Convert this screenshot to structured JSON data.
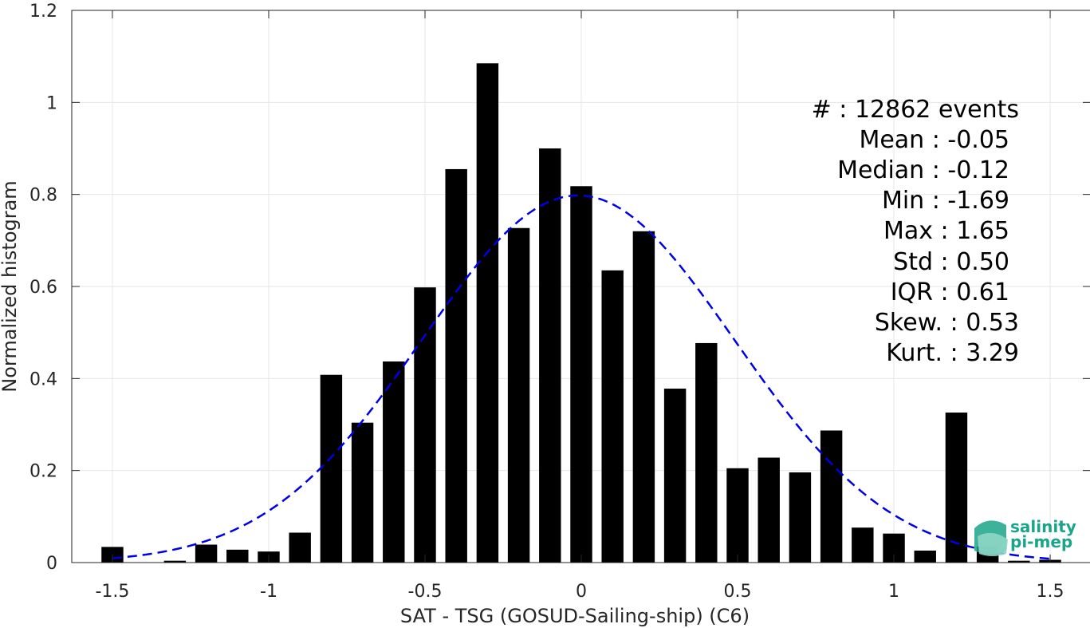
{
  "chart_data": {
    "type": "bar",
    "xlabel": "SAT - TSG (GOSUD-Sailing-ship) (C6)",
    "ylabel": "Normalized histogram",
    "xlim": [
      -1.63,
      1.63
    ],
    "ylim": [
      0,
      1.2
    ],
    "xticks": [
      -1.5,
      -1,
      -0.5,
      0,
      0.5,
      1,
      1.5
    ],
    "xtick_labels": [
      "-1.5",
      "-1",
      "-0.5",
      "0",
      "0.5",
      "1",
      "1.5"
    ],
    "yticks": [
      0,
      0.2,
      0.4,
      0.6,
      0.8,
      1,
      1.2
    ],
    "ytick_labels": [
      "0",
      "0.2",
      "0.4",
      "0.6",
      "0.8",
      "1",
      "1.2"
    ],
    "grid": true,
    "bar_width": 0.07,
    "bins": [
      {
        "x": -1.5,
        "y": 0.034
      },
      {
        "x": -1.3,
        "y": 0.004
      },
      {
        "x": -1.2,
        "y": 0.039
      },
      {
        "x": -1.1,
        "y": 0.028
      },
      {
        "x": -1.0,
        "y": 0.024
      },
      {
        "x": -0.9,
        "y": 0.065
      },
      {
        "x": -0.8,
        "y": 0.408
      },
      {
        "x": -0.7,
        "y": 0.304
      },
      {
        "x": -0.6,
        "y": 0.437
      },
      {
        "x": -0.5,
        "y": 0.598
      },
      {
        "x": -0.4,
        "y": 0.855
      },
      {
        "x": -0.3,
        "y": 1.085
      },
      {
        "x": -0.2,
        "y": 0.727
      },
      {
        "x": -0.1,
        "y": 0.9
      },
      {
        "x": 0.0,
        "y": 0.818
      },
      {
        "x": 0.1,
        "y": 0.635
      },
      {
        "x": 0.2,
        "y": 0.72
      },
      {
        "x": 0.3,
        "y": 0.378
      },
      {
        "x": 0.4,
        "y": 0.477
      },
      {
        "x": 0.5,
        "y": 0.205
      },
      {
        "x": 0.6,
        "y": 0.228
      },
      {
        "x": 0.7,
        "y": 0.196
      },
      {
        "x": 0.8,
        "y": 0.287
      },
      {
        "x": 0.9,
        "y": 0.076
      },
      {
        "x": 1.0,
        "y": 0.063
      },
      {
        "x": 1.1,
        "y": 0.026
      },
      {
        "x": 1.2,
        "y": 0.326
      },
      {
        "x": 1.3,
        "y": 0.035
      },
      {
        "x": 1.4,
        "y": 0.004
      },
      {
        "x": 1.5,
        "y": 0.006
      }
    ],
    "fit_curve": {
      "style": "dashed",
      "color": "#0000e6",
      "x_range": [
        -1.5,
        1.5
      ],
      "mean": -0.01,
      "std": 0.5
    },
    "bar_color": "#000000"
  },
  "stats": {
    "events": "#  : 12862 events",
    "mean": "Mean : -0.05",
    "median": "Median : -0.12",
    "min": "Min : -1.69",
    "max": "Max : 1.65",
    "std": "Std : 0.50",
    "iqr": "IQR : 0.61",
    "skew": "Skew. : 0.53",
    "kurt": "Kurt. : 3.29"
  },
  "logo": {
    "line1": "salinity",
    "line2": "pi-mep",
    "color": "#1aa58a"
  }
}
